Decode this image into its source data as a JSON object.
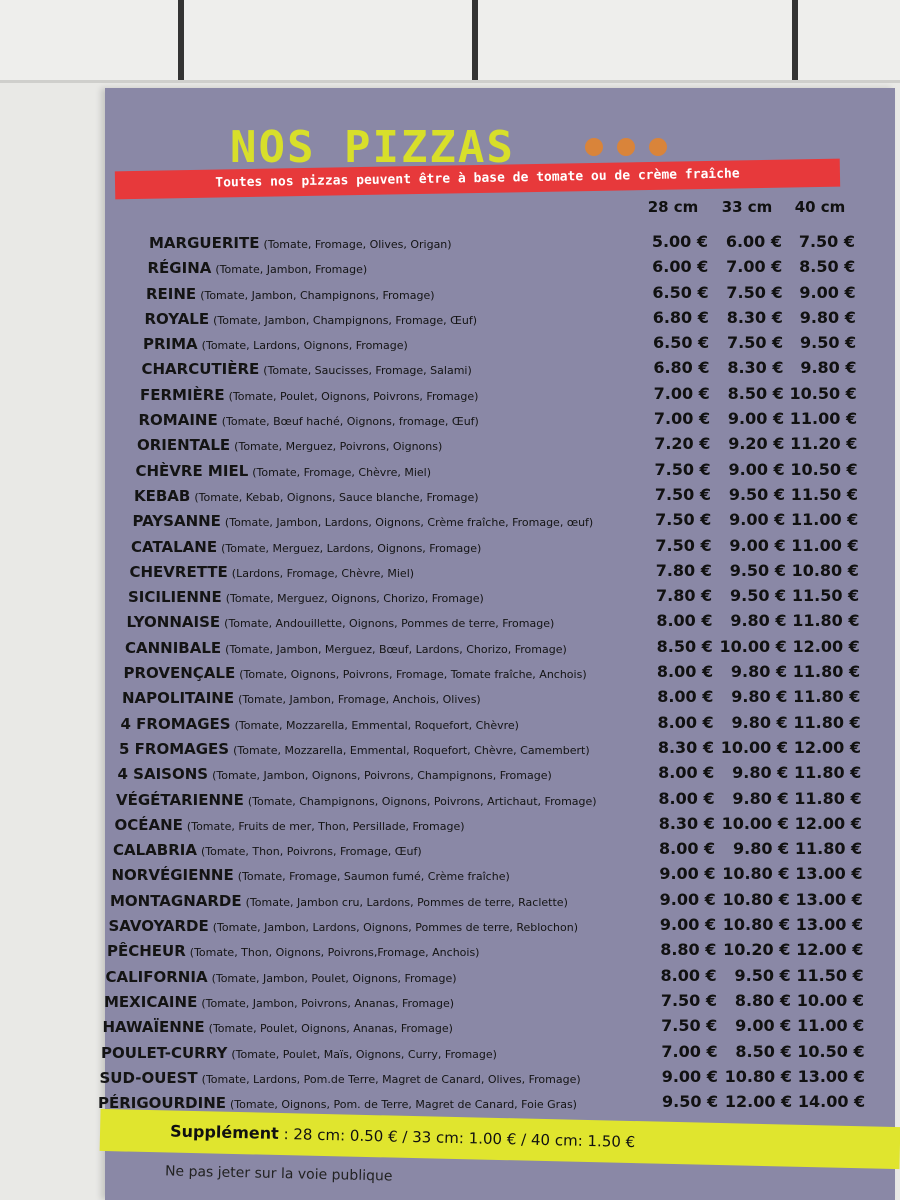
{
  "header": {
    "title": "NOS PIZZAS",
    "banner": "Toutes nos pizzas peuvent être à base de tomate ou de crème fraîche",
    "sizes": [
      "28 cm",
      "33 cm",
      "40 cm"
    ]
  },
  "menu": {
    "rows": [
      {
        "name": "MARGUERITE",
        "ingredients": "(Tomate, Fromage, Olives, Origan)",
        "prices": [
          "5.00 €",
          "6.00 €",
          "7.50 €"
        ]
      },
      {
        "name": "RÉGINA",
        "ingredients": "(Tomate, Jambon, Fromage)",
        "prices": [
          "6.00 €",
          "7.00 €",
          "8.50 €"
        ]
      },
      {
        "name": "REINE",
        "ingredients": "(Tomate, Jambon, Champignons, Fromage)",
        "prices": [
          "6.50 €",
          "7.50 €",
          "9.00 €"
        ]
      },
      {
        "name": "ROYALE",
        "ingredients": "(Tomate, Jambon, Champignons, Fromage, Œuf)",
        "prices": [
          "6.80 €",
          "8.30 €",
          "9.80 €"
        ]
      },
      {
        "name": "PRIMA",
        "ingredients": "(Tomate, Lardons, Oignons, Fromage)",
        "prices": [
          "6.50 €",
          "7.50 €",
          "9.50 €"
        ]
      },
      {
        "name": "CHARCUTIÈRE",
        "ingredients": "(Tomate, Saucisses, Fromage, Salami)",
        "prices": [
          "6.80 €",
          "8.30 €",
          "9.80 €"
        ]
      },
      {
        "name": "FERMIÈRE",
        "ingredients": "(Tomate, Poulet, Oignons, Poivrons, Fromage)",
        "prices": [
          "7.00 €",
          "8.50 €",
          "10.50 €"
        ]
      },
      {
        "name": "ROMAINE",
        "ingredients": "(Tomate, Bœuf haché, Oignons, fromage, Œuf)",
        "prices": [
          "7.00 €",
          "9.00 €",
          "11.00 €"
        ]
      },
      {
        "name": "ORIENTALE",
        "ingredients": "(Tomate, Merguez, Poivrons, Oignons)",
        "prices": [
          "7.20 €",
          "9.20 €",
          "11.20 €"
        ]
      },
      {
        "name": "CHÈVRE MIEL",
        "ingredients": "(Tomate, Fromage, Chèvre, Miel)",
        "prices": [
          "7.50 €",
          "9.00 €",
          "10.50 €"
        ]
      },
      {
        "name": "KEBAB",
        "ingredients": "(Tomate, Kebab, Oignons, Sauce blanche, Fromage)",
        "prices": [
          "7.50 €",
          "9.50 €",
          "11.50 €"
        ]
      },
      {
        "name": "PAYSANNE",
        "ingredients": "(Tomate, Jambon, Lardons, Oignons, Crème fraîche, Fromage, œuf)",
        "prices": [
          "7.50 €",
          "9.00 €",
          "11.00 €"
        ]
      },
      {
        "name": "CATALANE",
        "ingredients": "(Tomate, Merguez, Lardons, Oignons, Fromage)",
        "prices": [
          "7.50 €",
          "9.00 €",
          "11.00 €"
        ]
      },
      {
        "name": "CHEVRETTE",
        "ingredients": "(Lardons, Fromage, Chèvre, Miel)",
        "prices": [
          "7.80 €",
          "9.50 €",
          "10.80 €"
        ]
      },
      {
        "name": "SICILIENNE",
        "ingredients": "(Tomate, Merguez, Oignons, Chorizo, Fromage)",
        "prices": [
          "7.80 €",
          "9.50 €",
          "11.50 €"
        ]
      },
      {
        "name": "LYONNAISE",
        "ingredients": "(Tomate, Andouillette, Oignons, Pommes de terre, Fromage)",
        "prices": [
          "8.00 €",
          "9.80 €",
          "11.80 €"
        ]
      },
      {
        "name": "CANNIBALE",
        "ingredients": "(Tomate, Jambon, Merguez, Bœuf, Lardons, Chorizo, Fromage)",
        "prices": [
          "8.50 €",
          "10.00 €",
          "12.00 €"
        ]
      },
      {
        "name": "PROVENÇALE",
        "ingredients": "(Tomate, Oignons, Poivrons, Fromage, Tomate fraîche, Anchois)",
        "prices": [
          "8.00 €",
          "9.80 €",
          "11.80 €"
        ]
      },
      {
        "name": "NAPOLITAINE",
        "ingredients": "(Tomate, Jambon, Fromage, Anchois, Olives)",
        "prices": [
          "8.00 €",
          "9.80 €",
          "11.80 €"
        ]
      },
      {
        "name": "4 FROMAGES",
        "ingredients": "(Tomate, Mozzarella, Emmental, Roquefort, Chèvre)",
        "prices": [
          "8.00 €",
          "9.80 €",
          "11.80 €"
        ]
      },
      {
        "name": "5 FROMAGES",
        "ingredients": "(Tomate, Mozzarella, Emmental, Roquefort, Chèvre, Camembert)",
        "prices": [
          "8.30 €",
          "10.00 €",
          "12.00 €"
        ]
      },
      {
        "name": "4 SAISONS",
        "ingredients": "(Tomate, Jambon, Oignons, Poivrons, Champignons, Fromage)",
        "prices": [
          "8.00 €",
          "9.80 €",
          "11.80 €"
        ]
      },
      {
        "name": "VÉGÉTARIENNE",
        "ingredients": "(Tomate, Champignons, Oignons, Poivrons, Artichaut, Fromage)",
        "prices": [
          "8.00 €",
          "9.80 €",
          "11.80 €"
        ]
      },
      {
        "name": "OCÉANE",
        "ingredients": "(Tomate, Fruits de mer, Thon, Persillade, Fromage)",
        "prices": [
          "8.30 €",
          "10.00 €",
          "12.00 €"
        ]
      },
      {
        "name": "CALABRIA",
        "ingredients": "(Tomate, Thon, Poivrons, Fromage, Œuf)",
        "prices": [
          "8.00 €",
          "9.80 €",
          "11.80 €"
        ]
      },
      {
        "name": "NORVÉGIENNE",
        "ingredients": "(Tomate, Fromage, Saumon fumé, Crème fraîche)",
        "prices": [
          "9.00 €",
          "10.80 €",
          "13.00 €"
        ]
      },
      {
        "name": "MONTAGNARDE",
        "ingredients": "(Tomate, Jambon cru, Lardons, Pommes de terre, Raclette)",
        "prices": [
          "9.00 €",
          "10.80 €",
          "13.00 €"
        ]
      },
      {
        "name": "SAVOYARDE",
        "ingredients": "(Tomate, Jambon, Lardons, Oignons, Pommes de terre, Reblochon)",
        "prices": [
          "9.00 €",
          "10.80 €",
          "13.00 €"
        ]
      },
      {
        "name": "PÊCHEUR",
        "ingredients": "(Tomate, Thon, Oignons, Poivrons,Fromage, Anchois)",
        "prices": [
          "8.80 €",
          "10.20 €",
          "12.00 €"
        ]
      },
      {
        "name": "CALIFORNIA",
        "ingredients": "(Tomate, Jambon, Poulet, Oignons, Fromage)",
        "prices": [
          "8.00 €",
          "9.50 €",
          "11.50 €"
        ]
      },
      {
        "name": "MEXICAINE",
        "ingredients": "(Tomate, Jambon, Poivrons, Ananas, Fromage)",
        "prices": [
          "7.50 €",
          "8.80 €",
          "10.00 €"
        ]
      },
      {
        "name": "HAWAÏENNE",
        "ingredients": "(Tomate, Poulet, Oignons, Ananas, Fromage)",
        "prices": [
          "7.50 €",
          "9.00 €",
          "11.00 €"
        ]
      },
      {
        "name": "POULET-CURRY",
        "ingredients": "(Tomate, Poulet, Maïs, Oignons, Curry, Fromage)",
        "prices": [
          "7.00 €",
          "8.50 €",
          "10.50 €"
        ]
      },
      {
        "name": "SUD-OUEST",
        "ingredients": "(Tomate, Lardons, Pom.de Terre, Magret de Canard, Olives, Fromage)",
        "prices": [
          "9.00 €",
          "10.80 €",
          "13.00 €"
        ]
      },
      {
        "name": "PÉRIGOURDINE",
        "ingredients": "(Tomate, Oignons, Pom. de Terre, Magret de Canard, Foie Gras)",
        "prices": [
          "9.50 €",
          "12.00 €",
          "14.00 €"
        ]
      }
    ]
  },
  "footer": {
    "supplement_label": "Supplément",
    "supplement": ": 28 cm: 0.50 € / 33 cm: 1.00 € / 40 cm: 1.50 €",
    "notice": "Ne pas jeter sur la voie publique"
  }
}
